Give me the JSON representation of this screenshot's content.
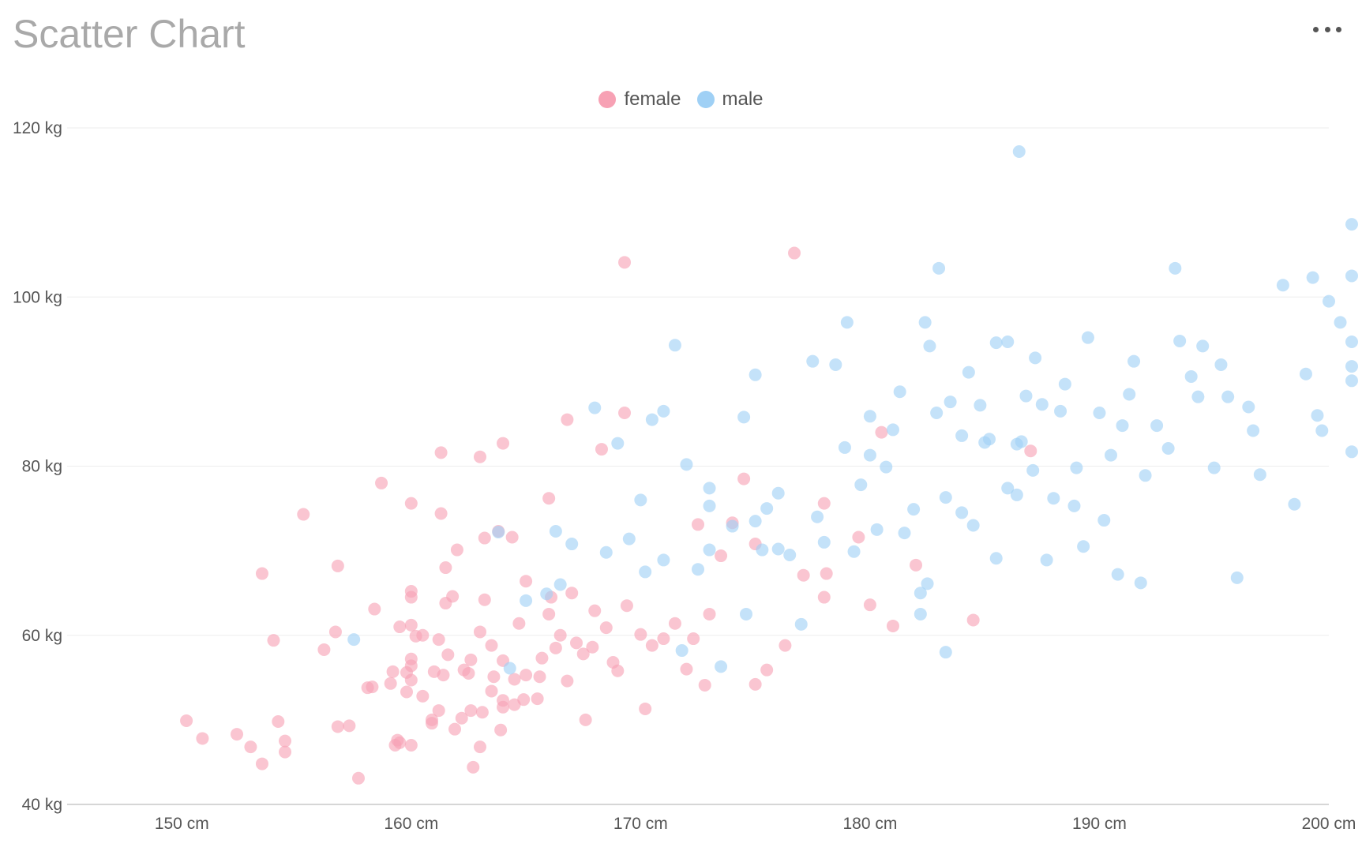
{
  "chart_data": {
    "type": "scatter",
    "title": "Scatter Chart",
    "xlim": [
      145,
      200
    ],
    "ylim": [
      40,
      120
    ],
    "x_ticks": [
      {
        "value": 150,
        "label": "150 cm"
      },
      {
        "value": 160,
        "label": "160 cm"
      },
      {
        "value": 170,
        "label": "170 cm"
      },
      {
        "value": 180,
        "label": "180 cm"
      },
      {
        "value": 190,
        "label": "190 cm"
      },
      {
        "value": 200,
        "label": "200 cm"
      }
    ],
    "y_ticks": [
      {
        "value": 40,
        "label": "40 kg"
      },
      {
        "value": 60,
        "label": "60 kg"
      },
      {
        "value": 80,
        "label": "80 kg"
      },
      {
        "value": 100,
        "label": "100 kg"
      },
      {
        "value": 120,
        "label": "120 kg"
      }
    ],
    "grid": "horizontal",
    "legend_position": "top-center",
    "series": [
      {
        "name": "female",
        "color": "#f7a1b4",
        "points": [
          [
            150.2,
            49.9
          ],
          [
            150.9,
            47.8
          ],
          [
            152.4,
            48.3
          ],
          [
            153,
            46.8
          ],
          [
            153.5,
            44.8
          ],
          [
            153.5,
            67.3
          ],
          [
            154.2,
            49.8
          ],
          [
            154.5,
            46.2
          ],
          [
            154.5,
            47.5
          ],
          [
            154,
            59.4
          ],
          [
            155.3,
            74.3
          ],
          [
            156.2,
            58.3
          ],
          [
            156.7,
            60.4
          ],
          [
            156.8,
            68.2
          ],
          [
            156.8,
            49.2
          ],
          [
            157.3,
            49.3
          ],
          [
            157.7,
            43.1
          ],
          [
            158.1,
            53.8
          ],
          [
            158.3,
            53.9
          ],
          [
            158.4,
            63.1
          ],
          [
            158.7,
            78
          ],
          [
            159.1,
            54.3
          ],
          [
            159.2,
            55.7
          ],
          [
            159.3,
            47
          ],
          [
            159.4,
            47.6
          ],
          [
            159.5,
            47.3
          ],
          [
            159.5,
            61
          ],
          [
            159.8,
            53.3
          ],
          [
            159.8,
            55.6
          ],
          [
            160,
            57.2
          ],
          [
            160,
            56.4
          ],
          [
            160,
            54.7
          ],
          [
            160,
            61.2
          ],
          [
            160,
            65.2
          ],
          [
            160,
            64.5
          ],
          [
            160,
            75.6
          ],
          [
            160,
            47
          ],
          [
            160.2,
            59.9
          ],
          [
            160.5,
            52.8
          ],
          [
            160.5,
            60
          ],
          [
            160.9,
            50
          ],
          [
            160.9,
            49.6
          ],
          [
            161,
            55.7
          ],
          [
            161.2,
            51.1
          ],
          [
            161.2,
            59.5
          ],
          [
            161.3,
            81.6
          ],
          [
            161.3,
            74.4
          ],
          [
            161.4,
            55.3
          ],
          [
            161.5,
            63.8
          ],
          [
            161.5,
            68
          ],
          [
            161.6,
            57.7
          ],
          [
            161.8,
            64.6
          ],
          [
            161.9,
            48.9
          ],
          [
            162,
            70.1
          ],
          [
            162.2,
            50.2
          ],
          [
            162.3,
            55.9
          ],
          [
            162.5,
            55.5
          ],
          [
            162.6,
            57.1
          ],
          [
            162.6,
            51.1
          ],
          [
            162.7,
            44.4
          ],
          [
            163,
            60.4
          ],
          [
            163,
            46.8
          ],
          [
            163.1,
            50.9
          ],
          [
            163.2,
            71.5
          ],
          [
            163.2,
            64.2
          ],
          [
            163.5,
            58.8
          ],
          [
            163.5,
            53.4
          ],
          [
            163.6,
            55.1
          ],
          [
            163.8,
            72.3
          ],
          [
            163.9,
            48.8
          ],
          [
            164,
            57
          ],
          [
            164,
            51.5
          ],
          [
            164,
            52.3
          ],
          [
            164.4,
            71.6
          ],
          [
            164.5,
            54.8
          ],
          [
            164.5,
            51.8
          ],
          [
            164.7,
            61.4
          ],
          [
            164.9,
            52.4
          ],
          [
            165,
            55.3
          ],
          [
            165,
            66.4
          ],
          [
            165.5,
            52.5
          ],
          [
            165.6,
            55.1
          ],
          [
            165.7,
            57.3
          ],
          [
            166,
            76.2
          ],
          [
            166,
            62.5
          ],
          [
            166.1,
            64.5
          ],
          [
            166.3,
            58.5
          ],
          [
            166.5,
            60
          ],
          [
            166.8,
            54.6
          ],
          [
            167,
            65
          ],
          [
            167.2,
            59.1
          ],
          [
            167.5,
            57.8
          ],
          [
            167.6,
            50
          ],
          [
            167.9,
            58.6
          ],
          [
            168,
            62.9
          ],
          [
            168.5,
            60.9
          ],
          [
            168.8,
            56.8
          ],
          [
            169,
            55.8
          ],
          [
            169.4,
            63.5
          ],
          [
            170,
            60.1
          ],
          [
            170.2,
            51.3
          ],
          [
            170.5,
            58.8
          ],
          [
            171,
            59.6
          ],
          [
            171.5,
            61.4
          ],
          [
            172,
            56
          ],
          [
            172.3,
            59.6
          ],
          [
            172.5,
            73.1
          ],
          [
            172.8,
            54.1
          ],
          [
            173,
            62.5
          ],
          [
            173.5,
            69.4
          ],
          [
            174,
            73.3
          ],
          [
            174.5,
            78.5
          ],
          [
            175,
            54.2
          ],
          [
            175.5,
            55.9
          ],
          [
            176.3,
            58.8
          ],
          [
            176.7,
            105.2
          ],
          [
            169.3,
            104.1
          ],
          [
            169.3,
            86.3
          ],
          [
            166.8,
            85.5
          ],
          [
            168.3,
            82
          ],
          [
            164,
            82.7
          ],
          [
            163,
            81.1
          ],
          [
            178,
            75.6
          ],
          [
            179.5,
            71.6
          ],
          [
            177.1,
            67.1
          ],
          [
            178.1,
            67.3
          ],
          [
            180.5,
            84
          ],
          [
            187,
            81.8
          ],
          [
            181,
            61.1
          ],
          [
            184.5,
            61.8
          ],
          [
            180,
            63.6
          ],
          [
            182,
            68.3
          ],
          [
            178,
            64.5
          ],
          [
            175,
            70.8
          ]
        ]
      },
      {
        "name": "male",
        "color": "#9fd0f5",
        "points": [
          [
            157.5,
            59.5
          ],
          [
            163.8,
            72.2
          ],
          [
            164.3,
            56.1
          ],
          [
            165,
            64.1
          ],
          [
            165.9,
            64.9
          ],
          [
            166.3,
            72.3
          ],
          [
            166.5,
            66
          ],
          [
            167,
            70.8
          ],
          [
            168,
            86.9
          ],
          [
            168.5,
            69.8
          ],
          [
            169,
            82.7
          ],
          [
            169.5,
            71.4
          ],
          [
            170,
            76
          ],
          [
            170.2,
            67.5
          ],
          [
            170.5,
            85.5
          ],
          [
            171,
            86.5
          ],
          [
            171,
            68.9
          ],
          [
            171.5,
            94.3
          ],
          [
            171.8,
            58.2
          ],
          [
            172,
            80.2
          ],
          [
            172.5,
            67.8
          ],
          [
            173,
            75.3
          ],
          [
            173,
            77.4
          ],
          [
            173,
            70.1
          ],
          [
            173.5,
            56.3
          ],
          [
            174,
            72.9
          ],
          [
            174.5,
            85.8
          ],
          [
            174.6,
            62.5
          ],
          [
            175,
            90.8
          ],
          [
            175,
            73.5
          ],
          [
            175.3,
            70.1
          ],
          [
            175.5,
            75
          ],
          [
            176,
            76.8
          ],
          [
            176,
            70.2
          ],
          [
            176.5,
            69.5
          ],
          [
            177,
            61.3
          ],
          [
            177.5,
            92.4
          ],
          [
            177.7,
            74
          ],
          [
            178,
            71
          ],
          [
            178.5,
            92
          ],
          [
            178.9,
            82.2
          ],
          [
            179,
            97
          ],
          [
            179.3,
            69.9
          ],
          [
            179.6,
            77.8
          ],
          [
            180,
            81.3
          ],
          [
            180,
            85.9
          ],
          [
            180.3,
            72.5
          ],
          [
            180.7,
            79.9
          ],
          [
            181,
            84.3
          ],
          [
            181.3,
            88.8
          ],
          [
            181.5,
            72.1
          ],
          [
            181.9,
            74.9
          ],
          [
            182.2,
            62.5
          ],
          [
            182.2,
            65
          ],
          [
            182.4,
            97
          ],
          [
            182.5,
            66.1
          ],
          [
            182.6,
            94.2
          ],
          [
            182.9,
            86.3
          ],
          [
            183,
            103.4
          ],
          [
            183.3,
            58
          ],
          [
            183.3,
            76.3
          ],
          [
            183.5,
            87.6
          ],
          [
            184,
            83.6
          ],
          [
            184,
            74.5
          ],
          [
            184.3,
            91.1
          ],
          [
            184.5,
            73
          ],
          [
            184.8,
            87.2
          ],
          [
            185,
            82.8
          ],
          [
            185.2,
            83.2
          ],
          [
            185.5,
            94.6
          ],
          [
            185.5,
            69.1
          ],
          [
            186,
            94.7
          ],
          [
            186,
            77.4
          ],
          [
            186.4,
            82.6
          ],
          [
            186.4,
            76.6
          ],
          [
            186.5,
            117.2
          ],
          [
            186.6,
            82.9
          ],
          [
            186.8,
            88.3
          ],
          [
            187.1,
            79.5
          ],
          [
            187.2,
            92.8
          ],
          [
            187.5,
            87.3
          ],
          [
            187.7,
            68.9
          ],
          [
            188,
            76.2
          ],
          [
            188.3,
            86.5
          ],
          [
            188.5,
            89.7
          ],
          [
            188.9,
            75.3
          ],
          [
            189,
            79.8
          ],
          [
            189.3,
            70.5
          ],
          [
            189.5,
            95.2
          ],
          [
            190,
            86.3
          ],
          [
            190.2,
            73.6
          ],
          [
            190.5,
            81.3
          ],
          [
            190.8,
            67.2
          ],
          [
            191,
            84.8
          ],
          [
            191.3,
            88.5
          ],
          [
            191.5,
            92.4
          ],
          [
            191.8,
            66.2
          ],
          [
            192,
            78.9
          ],
          [
            192.5,
            84.8
          ],
          [
            193,
            82.1
          ],
          [
            193.3,
            103.4
          ],
          [
            193.5,
            94.8
          ],
          [
            194,
            90.6
          ],
          [
            194.3,
            88.2
          ],
          [
            194.5,
            94.2
          ],
          [
            195,
            79.8
          ],
          [
            195.3,
            92
          ],
          [
            195.6,
            88.2
          ],
          [
            196,
            66.8
          ],
          [
            196.5,
            87
          ],
          [
            196.7,
            84.2
          ],
          [
            197,
            79
          ],
          [
            198,
            101.4
          ],
          [
            198.5,
            75.5
          ],
          [
            199,
            90.9
          ],
          [
            199.3,
            102.3
          ],
          [
            199.5,
            86
          ],
          [
            199.7,
            84.2
          ],
          [
            200,
            99.5
          ],
          [
            200.5,
            97
          ],
          [
            201,
            108.6
          ],
          [
            201.5,
            90.1
          ],
          [
            202,
            94.7
          ],
          [
            202.3,
            102.5
          ],
          [
            202.8,
            81.7
          ],
          [
            205,
            91.8
          ]
        ]
      }
    ]
  }
}
